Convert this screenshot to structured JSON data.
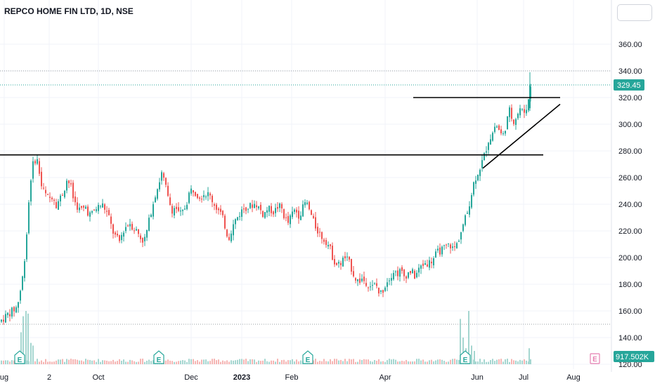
{
  "header": {
    "title": "REPCO HOME FIN LTD, 1D, NSE"
  },
  "chart_data": {
    "type": "candlestick",
    "symbol": "REPCO HOME FIN LTD",
    "interval": "1D",
    "exchange": "NSE",
    "ylim": [
      120,
      380
    ],
    "y_ticks": [
      "360.00",
      "340.00",
      "320.00",
      "300.00",
      "280.00",
      "260.00",
      "240.00",
      "220.00",
      "200.00",
      "180.00",
      "160.00",
      "140.00",
      "120.00"
    ],
    "x_ticks": [
      {
        "label": "ug",
        "bold": false
      },
      {
        "label": "2",
        "bold": false
      },
      {
        "label": "Oct",
        "bold": false
      },
      {
        "label": "Dec",
        "bold": false
      },
      {
        "label": "2023",
        "bold": true
      },
      {
        "label": "Feb",
        "bold": false
      },
      {
        "label": "Apr",
        "bold": false
      },
      {
        "label": "Jun",
        "bold": false
      },
      {
        "label": "Jul",
        "bold": false
      },
      {
        "label": "Aug",
        "bold": false
      }
    ],
    "last_price": "329.45",
    "volume_label": "917.502K",
    "earnings_marker": "E",
    "price_path": [
      [
        0,
        152
      ],
      [
        6,
        155
      ],
      [
        12,
        158
      ],
      [
        18,
        160
      ],
      [
        24,
        163
      ],
      [
        28,
        172
      ],
      [
        32,
        185
      ],
      [
        36,
        205
      ],
      [
        39,
        225
      ],
      [
        42,
        250
      ],
      [
        45,
        265
      ],
      [
        48,
        272
      ],
      [
        52,
        275
      ],
      [
        55,
        268
      ],
      [
        58,
        255
      ],
      [
        62,
        250
      ],
      [
        66,
        246
      ],
      [
        70,
        244
      ],
      [
        75,
        247
      ],
      [
        80,
        240
      ],
      [
        85,
        244
      ],
      [
        90,
        249
      ],
      [
        95,
        258
      ],
      [
        100,
        255
      ],
      [
        104,
        245
      ],
      [
        108,
        240
      ],
      [
        113,
        236
      ],
      [
        118,
        236
      ],
      [
        122,
        238
      ],
      [
        126,
        233
      ],
      [
        130,
        232
      ],
      [
        135,
        236
      ],
      [
        140,
        238
      ],
      [
        145,
        240
      ],
      [
        150,
        236
      ],
      [
        155,
        230
      ],
      [
        160,
        220
      ],
      [
        165,
        215
      ],
      [
        170,
        212
      ],
      [
        175,
        220
      ],
      [
        180,
        224
      ],
      [
        185,
        226
      ],
      [
        190,
        222
      ],
      [
        195,
        220
      ],
      [
        200,
        215
      ],
      [
        205,
        212
      ],
      [
        210,
        222
      ],
      [
        215,
        235
      ],
      [
        220,
        246
      ],
      [
        225,
        254
      ],
      [
        230,
        263
      ],
      [
        235,
        255
      ],
      [
        240,
        242
      ],
      [
        245,
        236
      ],
      [
        250,
        238
      ],
      [
        255,
        232
      ],
      [
        260,
        234
      ],
      [
        265,
        240
      ],
      [
        270,
        250
      ],
      [
        275,
        251
      ],
      [
        280,
        248
      ],
      [
        285,
        246
      ],
      [
        290,
        248
      ],
      [
        295,
        248
      ],
      [
        300,
        245
      ],
      [
        305,
        240
      ],
      [
        310,
        236
      ],
      [
        315,
        232
      ],
      [
        320,
        224
      ],
      [
        325,
        214
      ],
      [
        330,
        222
      ],
      [
        335,
        228
      ],
      [
        340,
        232
      ],
      [
        345,
        236
      ],
      [
        350,
        238
      ],
      [
        355,
        238
      ],
      [
        360,
        240
      ],
      [
        365,
        240
      ],
      [
        370,
        236
      ],
      [
        375,
        232
      ],
      [
        380,
        236
      ],
      [
        385,
        236
      ],
      [
        390,
        234
      ],
      [
        395,
        238
      ],
      [
        400,
        238
      ],
      [
        405,
        230
      ],
      [
        410,
        226
      ],
      [
        415,
        232
      ],
      [
        420,
        236
      ],
      [
        425,
        232
      ],
      [
        430,
        236
      ],
      [
        435,
        242
      ],
      [
        440,
        236
      ],
      [
        445,
        228
      ],
      [
        450,
        222
      ],
      [
        455,
        218
      ],
      [
        460,
        214
      ],
      [
        465,
        212
      ],
      [
        470,
        206
      ],
      [
        475,
        198
      ],
      [
        480,
        194
      ],
      [
        485,
        196
      ],
      [
        490,
        200
      ],
      [
        495,
        198
      ],
      [
        500,
        192
      ],
      [
        505,
        185
      ],
      [
        510,
        182
      ],
      [
        515,
        184
      ],
      [
        520,
        182
      ],
      [
        525,
        180
      ],
      [
        530,
        178
      ],
      [
        535,
        180
      ],
      [
        540,
        172
      ],
      [
        545,
        176
      ],
      [
        550,
        182
      ],
      [
        555,
        186
      ],
      [
        560,
        190
      ],
      [
        565,
        188
      ],
      [
        570,
        190
      ],
      [
        575,
        186
      ],
      [
        580,
        188
      ],
      [
        585,
        190
      ],
      [
        590,
        186
      ],
      [
        595,
        190
      ],
      [
        600,
        194
      ],
      [
        605,
        196
      ],
      [
        610,
        196
      ],
      [
        615,
        198
      ],
      [
        620,
        202
      ],
      [
        625,
        205
      ],
      [
        630,
        206
      ],
      [
        635,
        208
      ],
      [
        640,
        210
      ],
      [
        645,
        206
      ],
      [
        650,
        210
      ],
      [
        655,
        218
      ],
      [
        660,
        226
      ],
      [
        665,
        234
      ],
      [
        670,
        246
      ],
      [
        675,
        258
      ],
      [
        680,
        264
      ],
      [
        685,
        270
      ],
      [
        690,
        278
      ],
      [
        695,
        288
      ],
      [
        700,
        292
      ],
      [
        705,
        300
      ],
      [
        710,
        296
      ],
      [
        715,
        290
      ],
      [
        720,
        300
      ],
      [
        725,
        310
      ],
      [
        730,
        302
      ],
      [
        735,
        306
      ],
      [
        740,
        312
      ],
      [
        745,
        308
      ],
      [
        750,
        314
      ],
      [
        753,
        320
      ],
      [
        755,
        329
      ]
    ],
    "volume_spikes": [
      {
        "x": 30,
        "v": 0.6
      },
      {
        "x": 33,
        "v": 0.9
      },
      {
        "x": 37,
        "v": 1.0
      },
      {
        "x": 40,
        "v": 0.95
      },
      {
        "x": 44,
        "v": 0.4
      },
      {
        "x": 47,
        "v": 0.35
      },
      {
        "x": 655,
        "v": 0.85
      },
      {
        "x": 659,
        "v": 0.5
      },
      {
        "x": 663,
        "v": 0.3
      },
      {
        "x": 667,
        "v": 1.0
      },
      {
        "x": 671,
        "v": 0.35
      },
      {
        "x": 675,
        "v": 0.25
      },
      {
        "x": 753,
        "v": 0.3
      }
    ],
    "earnings_x": [
      28,
      226,
      438,
      662
    ],
    "resistance_line_upper": {
      "from": {
        "x": 588,
        "y": 320
      },
      "to": {
        "x": 797,
        "y": 320
      }
    },
    "support_line_lower": {
      "from": {
        "x": 0,
        "y": 277
      },
      "to": {
        "x": 773,
        "y": 277
      }
    },
    "trend_line": {
      "from": {
        "x": 687,
        "y": 267
      },
      "to": {
        "x": 797,
        "y": 315
      }
    },
    "dotted_lines_y": [
      340,
      329.45,
      150
    ]
  },
  "colors": {
    "up": "#26a69a",
    "down": "#ef5350",
    "price_badge": "#26a69a",
    "volume_badge": "#26a69a",
    "grid": "#f0f3fa",
    "axis_text": "#131722",
    "earnings_border": "#26a69a",
    "earnings_pink": "#e57fb0"
  }
}
